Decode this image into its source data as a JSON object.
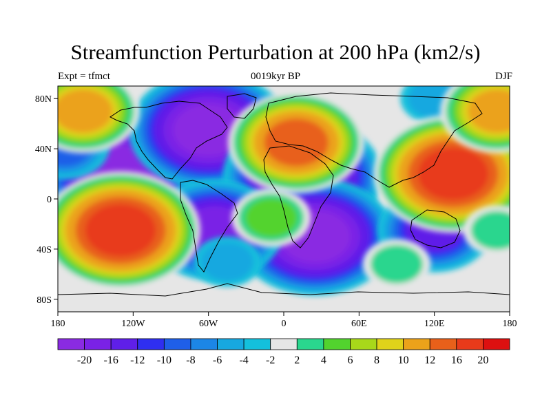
{
  "header": {
    "title": "Streamfunction Perturbation at 200 hPa (km2/s)",
    "left_label": "Expt = tfmct",
    "center_label": "0019kyr BP",
    "right_label": "DJF"
  },
  "chart_data": {
    "type": "heatmap",
    "projection": "cylindrical-equidistant",
    "lon_range": [
      -180,
      180
    ],
    "lat_range": [
      -90,
      90
    ],
    "x_tick_labels": [
      "180",
      "120W",
      "60W",
      "0",
      "60E",
      "120E",
      "180"
    ],
    "x_tick_values": [
      -180,
      -120,
      -60,
      0,
      60,
      120,
      180
    ],
    "y_tick_labels": [
      "80N",
      "40N",
      "0",
      "40S",
      "80S"
    ],
    "y_tick_values": [
      80,
      40,
      0,
      -40,
      -80
    ],
    "colorbar": {
      "labels": [
        "-20",
        "-16",
        "-12",
        "-10",
        "-8",
        "-6",
        "-4",
        "-2",
        "2",
        "4",
        "6",
        "8",
        "10",
        "12",
        "16",
        "20"
      ],
      "colors": [
        "#8a2be2",
        "#7a22e6",
        "#5f1fe8",
        "#2f2ff0",
        "#1f5fe8",
        "#1c86e6",
        "#17a8e0",
        "#14c0dc",
        "#e6e6e6",
        "#2ad68e",
        "#52d32e",
        "#a8d81a",
        "#e0d21a",
        "#eba21a",
        "#e8601a",
        "#e83a1a",
        "#dd1010"
      ]
    },
    "field_centers": [
      {
        "lon": -130,
        "lat": 22,
        "value": -20
      },
      {
        "lon": -60,
        "lat": 55,
        "value": -20
      },
      {
        "lon": 15,
        "lat": 18,
        "value": -20
      },
      {
        "lon": 25,
        "lat": -30,
        "value": -20
      },
      {
        "lon": -55,
        "lat": -25,
        "value": -16
      },
      {
        "lon": 120,
        "lat": -25,
        "value": -12
      },
      {
        "lon": 160,
        "lat": 45,
        "value": -10
      },
      {
        "lon": -175,
        "lat": 42,
        "value": -8
      },
      {
        "lon": -45,
        "lat": -50,
        "value": -4
      },
      {
        "lon": 120,
        "lat": 80,
        "value": -4
      },
      {
        "lon": -130,
        "lat": -25,
        "value": 20
      },
      {
        "lon": 135,
        "lat": 20,
        "value": 20
      },
      {
        "lon": 10,
        "lat": 45,
        "value": 16
      },
      {
        "lon": -160,
        "lat": 70,
        "value": 12
      },
      {
        "lon": 170,
        "lat": 70,
        "value": 12
      },
      {
        "lon": -10,
        "lat": -15,
        "value": 6
      },
      {
        "lon": 90,
        "lat": -52,
        "value": 4
      },
      {
        "lon": 170,
        "lat": -25,
        "value": 4
      }
    ]
  }
}
